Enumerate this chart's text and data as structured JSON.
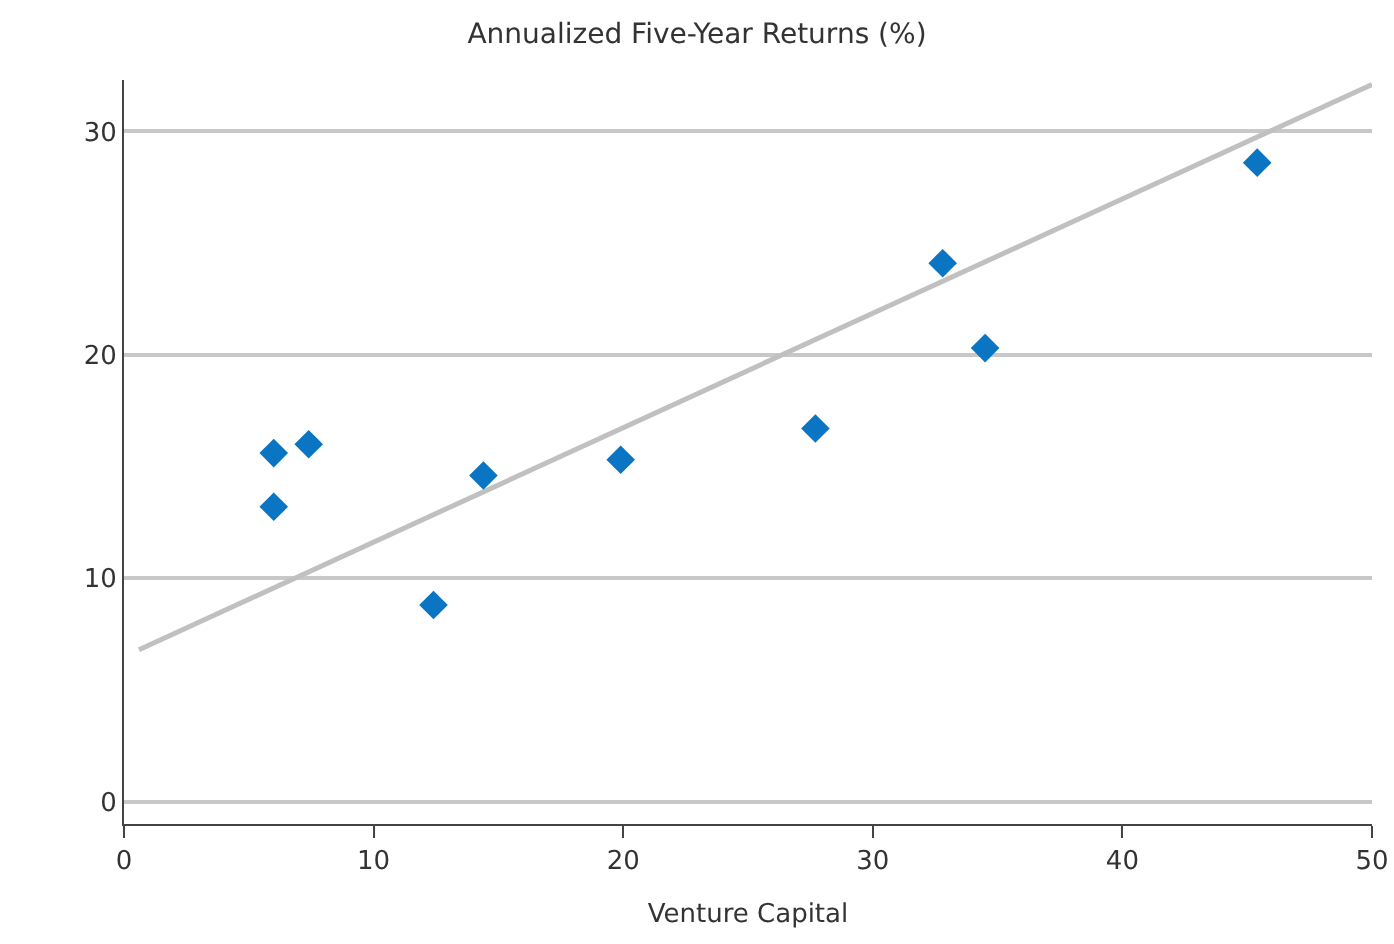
{
  "chart_data": {
    "type": "scatter",
    "title": "Annualized Five-Year Returns (%)",
    "xlabel": "Venture Capital",
    "xlim": [
      0,
      50
    ],
    "xticks": [
      0,
      10,
      20,
      30,
      40,
      50
    ],
    "ylim": [
      -1,
      32.3
    ],
    "yticks": [
      0,
      10,
      20,
      30
    ],
    "grid": "y",
    "series": [
      {
        "marker": "diamond",
        "color": "#0a75c2",
        "x": [
          6.0,
          6.0,
          7.4,
          12.4,
          14.4,
          19.9,
          27.7,
          32.8,
          34.5,
          45.4
        ],
        "values": [
          15.6,
          13.2,
          16.0,
          8.8,
          14.6,
          15.3,
          16.7,
          24.1,
          20.3,
          28.6
        ]
      },
      {
        "type": "line",
        "marker": "none",
        "color": "#c0c0c0",
        "x": [
          0.6,
          50
        ],
        "values": [
          6.8,
          32.1
        ]
      }
    ]
  }
}
